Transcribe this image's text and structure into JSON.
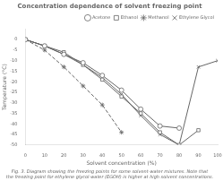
{
  "chart_data": {
    "type": "line",
    "title": "Concentration dependence of solvent freezing point",
    "x_label": "Solvent concentration (%)",
    "y_label": "Temperature (°C)",
    "caption": "Fig. 3. Diagram showing the freezing points for some solvent-water mixtures. Note that\nthe freezing point for ethylene glycol-water (EGOH) is higher at high solvent concentrations.",
    "xlim": [
      0,
      100
    ],
    "ylim": [
      -50,
      5
    ],
    "xticks": [
      0,
      10,
      20,
      30,
      40,
      50,
      60,
      70,
      80,
      90,
      100
    ],
    "yticks": [
      0,
      -5,
      -10,
      -15,
      -20,
      -25,
      -30,
      -35,
      -40,
      -45,
      -50
    ],
    "grid": false,
    "legend": "upper right",
    "series": [
      {
        "name": "Acetone",
        "color": "#666666",
        "marker": "circle",
        "line_style": "solid",
        "x": [
          0,
          10,
          20,
          30,
          40,
          50,
          60,
          70,
          80
        ],
        "values": [
          0,
          -3,
          -7,
          -11,
          -17,
          -24,
          -33,
          -41,
          -42
        ]
      },
      {
        "name": "Ethanol",
        "color": "#666666",
        "marker": "square",
        "line_style": "solid",
        "x": [
          0,
          10,
          20,
          30,
          40,
          50,
          60,
          70,
          80,
          90
        ],
        "values": [
          0,
          -3,
          -6,
          -12,
          -19,
          -27,
          -35,
          -44,
          -50,
          -43
        ]
      },
      {
        "name": "Methanol",
        "color": "#666666",
        "marker": "star",
        "line_style": "dashed",
        "x": [
          0,
          10,
          20,
          30,
          40,
          50
        ],
        "values": [
          0,
          -5,
          -13,
          -22,
          -31,
          -44
        ]
      },
      {
        "name": "Ethylene Glycol",
        "color": "#666666",
        "marker": "x",
        "line_style": "solid",
        "x": [
          0,
          10,
          20,
          30,
          40,
          50,
          60,
          70,
          80,
          90,
          100
        ],
        "values": [
          0,
          -3,
          -7,
          -12,
          -18,
          -26,
          -36,
          -45,
          -50,
          -13,
          -10
        ]
      }
    ]
  }
}
